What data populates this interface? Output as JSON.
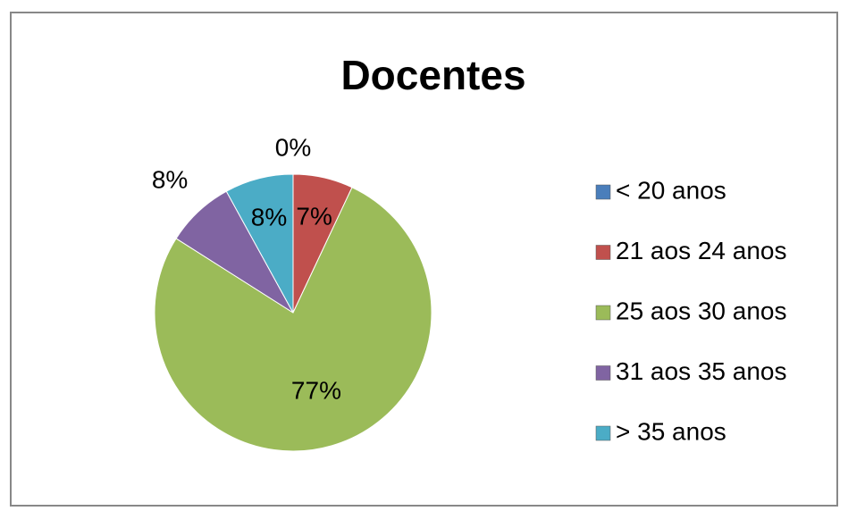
{
  "chart_data": {
    "type": "pie",
    "title": "Docentes",
    "categories": [
      "< 20 anos",
      "21 aos 24 anos",
      "25 aos 30 anos",
      "31 aos 35 anos",
      "> 35 anos"
    ],
    "values": [
      0,
      7,
      77,
      8,
      8
    ],
    "value_labels": [
      "0%",
      "7%",
      "77%",
      "8%",
      "8%"
    ],
    "colors": [
      "#4a7ebb",
      "#c0504d",
      "#9bbb59",
      "#8064a2",
      "#4bacc6"
    ],
    "legend": "right"
  }
}
